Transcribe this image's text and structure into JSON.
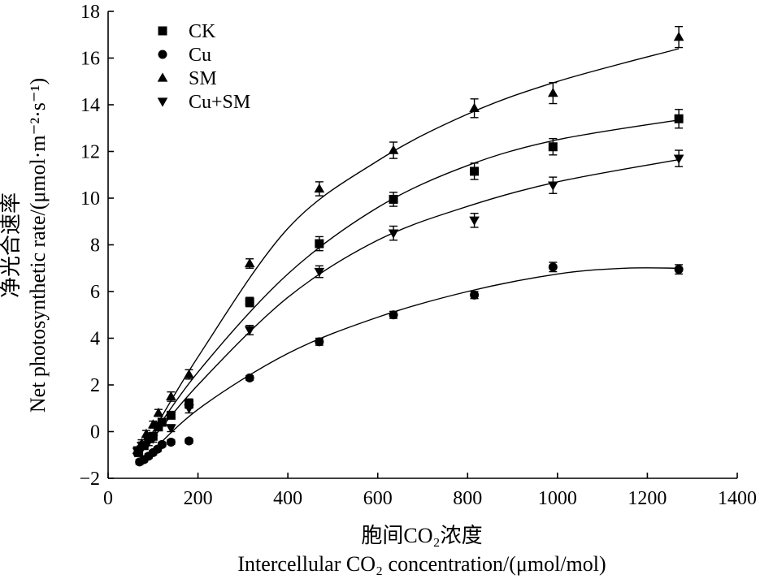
{
  "chart_data": {
    "type": "scatter",
    "title": "",
    "xlabel_cn": "胞间CO₂浓度",
    "xlabel_en": "Intercellular CO₂ concentration/(μmol/mol)",
    "ylabel_cn": "净光合速率",
    "ylabel_en": "Net photosynthetic rate/(μmol·m⁻²·s⁻¹)",
    "xlim": [
      0,
      1400
    ],
    "ylim": [
      -2,
      18
    ],
    "xticks": [
      0,
      200,
      400,
      600,
      800,
      1000,
      1200,
      1400
    ],
    "yticks": [
      -2,
      0,
      2,
      4,
      6,
      8,
      10,
      12,
      14,
      16,
      18
    ],
    "grid": false,
    "legend_position": "top-left",
    "series": [
      {
        "name": "CK",
        "marker": "square",
        "x": [
          68,
          80,
          90,
          100,
          112,
          120,
          140,
          180,
          315,
          470,
          635,
          815,
          990,
          1270
        ],
        "y": [
          -0.9,
          -0.6,
          -0.3,
          -0.2,
          0.2,
          0.4,
          0.7,
          1.2,
          5.55,
          8.05,
          9.95,
          11.15,
          12.2,
          13.4
        ],
        "err": [
          0.15,
          0.15,
          0.15,
          0.15,
          0.15,
          0.15,
          0.15,
          0.2,
          0.2,
          0.3,
          0.3,
          0.35,
          0.35,
          0.4
        ]
      },
      {
        "name": "Cu",
        "marker": "circle",
        "x": [
          70,
          80,
          90,
          100,
          110,
          120,
          140,
          180,
          315,
          470,
          635,
          815,
          990,
          1270
        ],
        "y": [
          -1.3,
          -1.2,
          -1.05,
          -0.9,
          -0.75,
          -0.55,
          -0.45,
          -0.4,
          2.3,
          3.85,
          5.0,
          5.85,
          7.05,
          6.95
        ],
        "err": [
          0.1,
          0.1,
          0.1,
          0.1,
          0.1,
          0.1,
          0.1,
          0.1,
          0.1,
          0.15,
          0.15,
          0.15,
          0.2,
          0.2
        ]
      },
      {
        "name": "SM",
        "marker": "triangle-up",
        "x": [
          65,
          75,
          85,
          100,
          112,
          140,
          180,
          315,
          470,
          635,
          815,
          990,
          1270
        ],
        "y": [
          -0.8,
          -0.5,
          -0.1,
          0.3,
          0.8,
          1.5,
          2.45,
          7.2,
          10.4,
          12.05,
          13.85,
          14.5,
          16.9
        ],
        "err": [
          0.15,
          0.15,
          0.15,
          0.15,
          0.15,
          0.2,
          0.2,
          0.2,
          0.3,
          0.35,
          0.4,
          0.45,
          0.45
        ]
      },
      {
        "name": "Cu+SM",
        "marker": "triangle-down",
        "x": [
          65,
          75,
          90,
          100,
          112,
          140,
          180,
          315,
          470,
          635,
          815,
          990,
          1270
        ],
        "y": [
          -0.85,
          -0.6,
          -0.45,
          -0.3,
          0.25,
          0.15,
          1.0,
          4.35,
          6.85,
          8.5,
          9.05,
          10.55,
          11.7
        ],
        "err": [
          0.15,
          0.15,
          0.15,
          0.15,
          0.15,
          0.15,
          0.2,
          0.2,
          0.25,
          0.3,
          0.3,
          0.35,
          0.35
        ]
      }
    ],
    "fit_curves": [
      {
        "series": "CK",
        "x": [
          70,
          200,
          400,
          600,
          800,
          1000,
          1270
        ],
        "y": [
          -1.0,
          2.55,
          6.75,
          9.6,
          11.4,
          12.5,
          13.35
        ]
      },
      {
        "series": "Cu",
        "x": [
          75,
          200,
          400,
          600,
          800,
          1000,
          1150,
          1270
        ],
        "y": [
          -1.3,
          0.95,
          3.35,
          4.9,
          6.0,
          6.75,
          7.0,
          7.0
        ]
      },
      {
        "series": "SM",
        "x": [
          70,
          200,
          400,
          600,
          800,
          1000,
          1270
        ],
        "y": [
          -1.0,
          3.2,
          8.7,
          11.6,
          13.6,
          15.0,
          16.4
        ]
      },
      {
        "series": "Cu+SM",
        "x": [
          70,
          200,
          400,
          600,
          800,
          1000,
          1270
        ],
        "y": [
          -1.0,
          2.0,
          5.75,
          8.2,
          9.65,
          10.7,
          11.65
        ]
      }
    ]
  }
}
